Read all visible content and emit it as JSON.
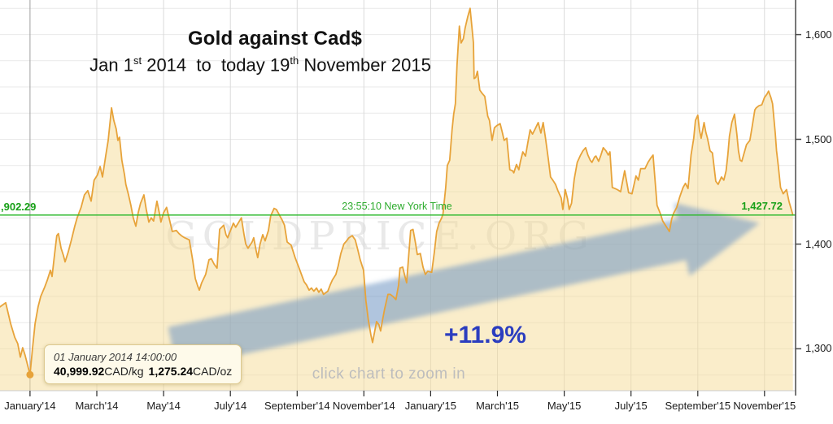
{
  "header": {
    "title": "Gold against Cad$",
    "subtitle": {
      "p1": "Jan 1",
      "sup1": "st",
      "p2": " 2014  to  today 19",
      "sup2": "th",
      "p3": " November 2015"
    }
  },
  "watermark": "GOLDPRICE.ORG",
  "annotations": {
    "price_left": ",902.29",
    "time_label": "23:55:10 New York Time",
    "price_right": "1,427.72",
    "gain_label": "+11.9%",
    "zoom_hint": "click chart to zoom in"
  },
  "tooltip": {
    "datetime": "01 January 2014 14:00:00",
    "kg_value": "40,999.92",
    "kg_unit": "CAD/kg",
    "oz_value": "1,275.24",
    "oz_unit": "CAD/oz"
  },
  "colors": {
    "line": "#e7a33a",
    "fill": "rgba(245,220,150,0.5)",
    "green_line": "#2db82d",
    "green_text": "#18a018",
    "arrow": "rgba(110,150,195,0.55)",
    "gain_blue": "#2b3dbf",
    "watermark": "#d8d8d8",
    "hgrid": "#e9e9e9",
    "vgrid": "#dadada",
    "vgrid_first": "#9f9f9f",
    "axis": "#4a4a4a",
    "bottom_line": "#cccccc",
    "tick": "#2a2a2a"
  },
  "chart_data": {
    "type": "area",
    "title": "Gold against Cad$",
    "subtitle": "Jan 1st 2014 to today 19th November 2015",
    "x_unit": "months since 2014-01-01",
    "x_range": [
      -0.9,
      22.93
    ],
    "y_unit": "CAD per oz",
    "ylim": [
      1260,
      1633
    ],
    "grid": true,
    "minor_grid_step": 25,
    "x_tick_labels": [
      "January'14",
      "March'14",
      "May'14",
      "July'14",
      "September'14",
      "November'14",
      "January'15",
      "March'15",
      "May'15",
      "July'15",
      "September'15",
      "November'15"
    ],
    "x_tick_months": [
      0,
      2,
      4,
      6,
      8,
      10,
      12,
      14,
      16,
      18,
      20,
      22
    ],
    "y_tick_labels": [
      "1,600",
      "1,500",
      "1,400",
      "1,300"
    ],
    "y_tick_values": [
      1600,
      1500,
      1400,
      1300
    ],
    "reference_price": 1427.72,
    "reference_time": "23:55:10 New York Time",
    "start_point": {
      "date": "01 January 2014 14:00:00",
      "cad_per_oz": 1275.24,
      "cad_per_kg": 40999.92
    },
    "gain_percent": "+11.9%",
    "points": [
      [
        -0.9,
        1340
      ],
      [
        -0.73,
        1344
      ],
      [
        -0.58,
        1324
      ],
      [
        -0.46,
        1311
      ],
      [
        -0.37,
        1305
      ],
      [
        -0.29,
        1292
      ],
      [
        -0.22,
        1301
      ],
      [
        -0.15,
        1294
      ],
      [
        -0.07,
        1284
      ],
      [
        0.0,
        1275.24
      ],
      [
        0.07,
        1299
      ],
      [
        0.15,
        1324
      ],
      [
        0.24,
        1340
      ],
      [
        0.32,
        1350
      ],
      [
        0.44,
        1359
      ],
      [
        0.51,
        1365
      ],
      [
        0.61,
        1375
      ],
      [
        0.66,
        1369
      ],
      [
        0.73,
        1389
      ],
      [
        0.8,
        1408
      ],
      [
        0.85,
        1410
      ],
      [
        0.93,
        1396
      ],
      [
        1.0,
        1389
      ],
      [
        1.05,
        1383
      ],
      [
        1.14,
        1392
      ],
      [
        1.24,
        1404
      ],
      [
        1.34,
        1417
      ],
      [
        1.41,
        1425
      ],
      [
        1.53,
        1435
      ],
      [
        1.63,
        1447
      ],
      [
        1.73,
        1451
      ],
      [
        1.83,
        1441
      ],
      [
        1.92,
        1461
      ],
      [
        2.02,
        1466
      ],
      [
        2.1,
        1474
      ],
      [
        2.17,
        1464
      ],
      [
        2.27,
        1485
      ],
      [
        2.34,
        1499
      ],
      [
        2.44,
        1530
      ],
      [
        2.51,
        1518
      ],
      [
        2.58,
        1510
      ],
      [
        2.63,
        1499
      ],
      [
        2.68,
        1502
      ],
      [
        2.75,
        1480
      ],
      [
        2.83,
        1466
      ],
      [
        2.87,
        1457
      ],
      [
        2.95,
        1447
      ],
      [
        3.02,
        1437
      ],
      [
        3.09,
        1425
      ],
      [
        3.17,
        1417
      ],
      [
        3.24,
        1430
      ],
      [
        3.31,
        1439
      ],
      [
        3.41,
        1447
      ],
      [
        3.48,
        1433
      ],
      [
        3.56,
        1421
      ],
      [
        3.63,
        1425
      ],
      [
        3.7,
        1422
      ],
      [
        3.8,
        1441
      ],
      [
        3.87,
        1430
      ],
      [
        3.92,
        1421
      ],
      [
        4.0,
        1430
      ],
      [
        4.09,
        1435
      ],
      [
        4.17,
        1424
      ],
      [
        4.26,
        1412
      ],
      [
        4.38,
        1413
      ],
      [
        4.46,
        1410
      ],
      [
        4.53,
        1408
      ],
      [
        4.63,
        1406
      ],
      [
        4.77,
        1404
      ],
      [
        4.87,
        1385
      ],
      [
        4.95,
        1367
      ],
      [
        5.02,
        1360
      ],
      [
        5.07,
        1356
      ],
      [
        5.14,
        1363
      ],
      [
        5.26,
        1371
      ],
      [
        5.36,
        1385
      ],
      [
        5.43,
        1386
      ],
      [
        5.51,
        1381
      ],
      [
        5.6,
        1377
      ],
      [
        5.68,
        1414
      ],
      [
        5.8,
        1418
      ],
      [
        5.87,
        1409
      ],
      [
        5.92,
        1406
      ],
      [
        6.09,
        1420
      ],
      [
        6.16,
        1416
      ],
      [
        6.33,
        1425
      ],
      [
        6.41,
        1409
      ],
      [
        6.46,
        1400
      ],
      [
        6.53,
        1396
      ],
      [
        6.65,
        1402
      ],
      [
        6.7,
        1406
      ],
      [
        6.77,
        1394
      ],
      [
        6.82,
        1387
      ],
      [
        6.89,
        1400
      ],
      [
        6.97,
        1409
      ],
      [
        7.04,
        1403
      ],
      [
        7.14,
        1413
      ],
      [
        7.21,
        1427
      ],
      [
        7.31,
        1434
      ],
      [
        7.38,
        1433
      ],
      [
        7.48,
        1427
      ],
      [
        7.55,
        1423
      ],
      [
        7.62,
        1418
      ],
      [
        7.7,
        1402
      ],
      [
        7.82,
        1399
      ],
      [
        7.94,
        1387
      ],
      [
        8.06,
        1377
      ],
      [
        8.21,
        1364
      ],
      [
        8.28,
        1361
      ],
      [
        8.36,
        1356
      ],
      [
        8.43,
        1358
      ],
      [
        8.5,
        1355
      ],
      [
        8.58,
        1358
      ],
      [
        8.65,
        1354
      ],
      [
        8.72,
        1357
      ],
      [
        8.79,
        1352
      ],
      [
        8.92,
        1355
      ],
      [
        8.99,
        1361
      ],
      [
        9.06,
        1366
      ],
      [
        9.16,
        1371
      ],
      [
        9.23,
        1379
      ],
      [
        9.31,
        1391
      ],
      [
        9.4,
        1400
      ],
      [
        9.48,
        1403
      ],
      [
        9.55,
        1406
      ],
      [
        9.65,
        1408
      ],
      [
        9.74,
        1404
      ],
      [
        9.82,
        1394
      ],
      [
        9.89,
        1385
      ],
      [
        9.99,
        1375
      ],
      [
        10.06,
        1346
      ],
      [
        10.13,
        1328
      ],
      [
        10.21,
        1313
      ],
      [
        10.26,
        1306
      ],
      [
        10.3,
        1313
      ],
      [
        10.38,
        1326
      ],
      [
        10.45,
        1323
      ],
      [
        10.5,
        1317
      ],
      [
        10.55,
        1326
      ],
      [
        10.62,
        1338
      ],
      [
        10.72,
        1352
      ],
      [
        10.79,
        1352
      ],
      [
        10.87,
        1350
      ],
      [
        10.96,
        1347
      ],
      [
        11.04,
        1361
      ],
      [
        11.08,
        1377
      ],
      [
        11.16,
        1378
      ],
      [
        11.23,
        1369
      ],
      [
        11.28,
        1363
      ],
      [
        11.35,
        1392
      ],
      [
        11.4,
        1413
      ],
      [
        11.47,
        1414
      ],
      [
        11.55,
        1400
      ],
      [
        11.6,
        1390
      ],
      [
        11.69,
        1391
      ],
      [
        11.77,
        1378
      ],
      [
        11.84,
        1371
      ],
      [
        11.91,
        1374
      ],
      [
        12.03,
        1373
      ],
      [
        12.11,
        1392
      ],
      [
        12.18,
        1412
      ],
      [
        12.25,
        1420
      ],
      [
        12.33,
        1425
      ],
      [
        12.37,
        1429
      ],
      [
        12.45,
        1454
      ],
      [
        12.5,
        1475
      ],
      [
        12.57,
        1480
      ],
      [
        12.64,
        1509
      ],
      [
        12.69,
        1524
      ],
      [
        12.74,
        1534
      ],
      [
        12.79,
        1571
      ],
      [
        12.86,
        1608
      ],
      [
        12.91,
        1592
      ],
      [
        12.98,
        1596
      ],
      [
        13.03,
        1606
      ],
      [
        13.11,
        1617
      ],
      [
        13.18,
        1625
      ],
      [
        13.23,
        1609
      ],
      [
        13.28,
        1592
      ],
      [
        13.3,
        1558
      ],
      [
        13.35,
        1559
      ],
      [
        13.4,
        1565
      ],
      [
        13.47,
        1547
      ],
      [
        13.54,
        1544
      ],
      [
        13.62,
        1541
      ],
      [
        13.71,
        1522
      ],
      [
        13.76,
        1518
      ],
      [
        13.84,
        1499
      ],
      [
        13.91,
        1511
      ],
      [
        13.98,
        1513
      ],
      [
        14.08,
        1515
      ],
      [
        14.15,
        1506
      ],
      [
        14.2,
        1499
      ],
      [
        14.28,
        1501
      ],
      [
        14.37,
        1471
      ],
      [
        14.45,
        1470
      ],
      [
        14.49,
        1468
      ],
      [
        14.57,
        1476
      ],
      [
        14.64,
        1471
      ],
      [
        14.69,
        1479
      ],
      [
        14.76,
        1488
      ],
      [
        14.84,
        1484
      ],
      [
        14.91,
        1497
      ],
      [
        14.98,
        1509
      ],
      [
        15.05,
        1505
      ],
      [
        15.13,
        1510
      ],
      [
        15.22,
        1516
      ],
      [
        15.3,
        1506
      ],
      [
        15.37,
        1516
      ],
      [
        15.44,
        1501
      ],
      [
        15.52,
        1482
      ],
      [
        15.59,
        1464
      ],
      [
        15.66,
        1461
      ],
      [
        15.74,
        1457
      ],
      [
        15.81,
        1451
      ],
      [
        15.91,
        1444
      ],
      [
        15.96,
        1433
      ],
      [
        16.03,
        1452
      ],
      [
        16.1,
        1443
      ],
      [
        16.15,
        1433
      ],
      [
        16.22,
        1439
      ],
      [
        16.3,
        1462
      ],
      [
        16.39,
        1478
      ],
      [
        16.49,
        1485
      ],
      [
        16.56,
        1489
      ],
      [
        16.64,
        1492
      ],
      [
        16.71,
        1485
      ],
      [
        16.78,
        1480
      ],
      [
        16.83,
        1478
      ],
      [
        16.91,
        1483
      ],
      [
        16.95,
        1484
      ],
      [
        17.03,
        1479
      ],
      [
        17.1,
        1485
      ],
      [
        17.17,
        1492
      ],
      [
        17.25,
        1489
      ],
      [
        17.32,
        1485
      ],
      [
        17.37,
        1488
      ],
      [
        17.44,
        1454
      ],
      [
        17.52,
        1453
      ],
      [
        17.59,
        1452
      ],
      [
        17.69,
        1450
      ],
      [
        17.81,
        1470
      ],
      [
        17.88,
        1458
      ],
      [
        17.93,
        1449
      ],
      [
        18.03,
        1448
      ],
      [
        18.15,
        1465
      ],
      [
        18.22,
        1461
      ],
      [
        18.29,
        1472
      ],
      [
        18.42,
        1472
      ],
      [
        18.51,
        1478
      ],
      [
        18.59,
        1482
      ],
      [
        18.66,
        1485
      ],
      [
        18.78,
        1437
      ],
      [
        18.88,
        1429
      ],
      [
        18.95,
        1422
      ],
      [
        19.15,
        1412
      ],
      [
        19.22,
        1424
      ],
      [
        19.27,
        1429
      ],
      [
        19.37,
        1435
      ],
      [
        19.46,
        1445
      ],
      [
        19.56,
        1454
      ],
      [
        19.63,
        1458
      ],
      [
        19.71,
        1453
      ],
      [
        19.8,
        1485
      ],
      [
        19.88,
        1501
      ],
      [
        19.93,
        1518
      ],
      [
        20.0,
        1523
      ],
      [
        20.05,
        1509
      ],
      [
        20.1,
        1501
      ],
      [
        20.19,
        1516
      ],
      [
        20.24,
        1507
      ],
      [
        20.29,
        1501
      ],
      [
        20.37,
        1489
      ],
      [
        20.44,
        1487
      ],
      [
        20.54,
        1460
      ],
      [
        20.61,
        1457
      ],
      [
        20.71,
        1464
      ],
      [
        20.78,
        1461
      ],
      [
        20.85,
        1470
      ],
      [
        20.9,
        1485
      ],
      [
        20.95,
        1503
      ],
      [
        21.02,
        1516
      ],
      [
        21.1,
        1524
      ],
      [
        21.17,
        1505
      ],
      [
        21.22,
        1489
      ],
      [
        21.27,
        1480
      ],
      [
        21.32,
        1479
      ],
      [
        21.39,
        1487
      ],
      [
        21.46,
        1495
      ],
      [
        21.56,
        1499
      ],
      [
        21.63,
        1512
      ],
      [
        21.71,
        1528
      ],
      [
        21.75,
        1530
      ],
      [
        21.83,
        1532
      ],
      [
        21.92,
        1533
      ],
      [
        22.0,
        1540
      ],
      [
        22.07,
        1543
      ],
      [
        22.12,
        1546
      ],
      [
        22.19,
        1540
      ],
      [
        22.24,
        1534
      ],
      [
        22.32,
        1506
      ],
      [
        22.36,
        1489
      ],
      [
        22.41,
        1475
      ],
      [
        22.48,
        1454
      ],
      [
        22.56,
        1448
      ],
      [
        22.66,
        1452
      ],
      [
        22.73,
        1441
      ],
      [
        22.85,
        1427.72
      ]
    ]
  }
}
